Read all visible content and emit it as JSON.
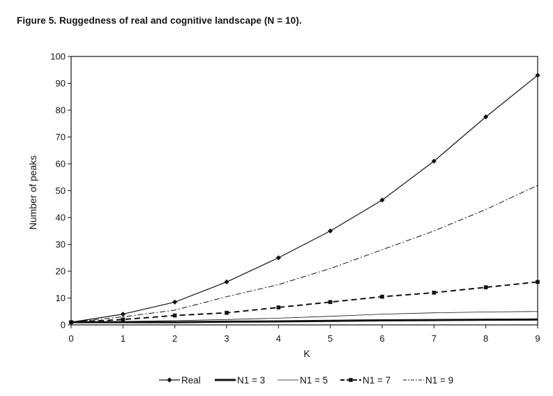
{
  "figure": {
    "title": "Figure 5. Ruggedness of real and cognitive landscape (N  =  10)."
  },
  "chart_data": {
    "type": "line",
    "title": "Figure 5. Ruggedness of real and cognitive landscape (N  =  10).",
    "xlabel": "K",
    "ylabel": "Number of peaks",
    "x": [
      0,
      1,
      2,
      3,
      4,
      5,
      6,
      7,
      8,
      9
    ],
    "xlim": [
      0,
      9
    ],
    "ylim": [
      0,
      100
    ],
    "yticks": [
      0,
      10,
      20,
      30,
      40,
      50,
      60,
      70,
      80,
      90,
      100
    ],
    "grid": false,
    "legend_position": "bottom",
    "series": [
      {
        "name": "Real",
        "style": "solid-diamond",
        "values": [
          1,
          4,
          8.5,
          16,
          25,
          35,
          46.5,
          61,
          77.5,
          93
        ]
      },
      {
        "name": "N1 = 3",
        "style": "thick",
        "values": [
          1,
          1,
          1,
          1.2,
          1.3,
          1.5,
          1.7,
          1.8,
          1.9,
          2
        ]
      },
      {
        "name": "N1 = 5",
        "style": "thin",
        "values": [
          1,
          1.3,
          1.6,
          2,
          2.5,
          3.2,
          4,
          4.5,
          4.8,
          5
        ]
      },
      {
        "name": "N1 = 7",
        "style": "dashed-square",
        "values": [
          1,
          2,
          3.5,
          4.5,
          6.5,
          8.5,
          10.5,
          12,
          14,
          16
        ]
      },
      {
        "name": "N1 = 9",
        "style": "dash-dot",
        "values": [
          1,
          3,
          5.5,
          10.5,
          15,
          21,
          28,
          35,
          43,
          52
        ]
      }
    ],
    "colors": {
      "line": "#111111",
      "background": "#ffffff"
    }
  }
}
